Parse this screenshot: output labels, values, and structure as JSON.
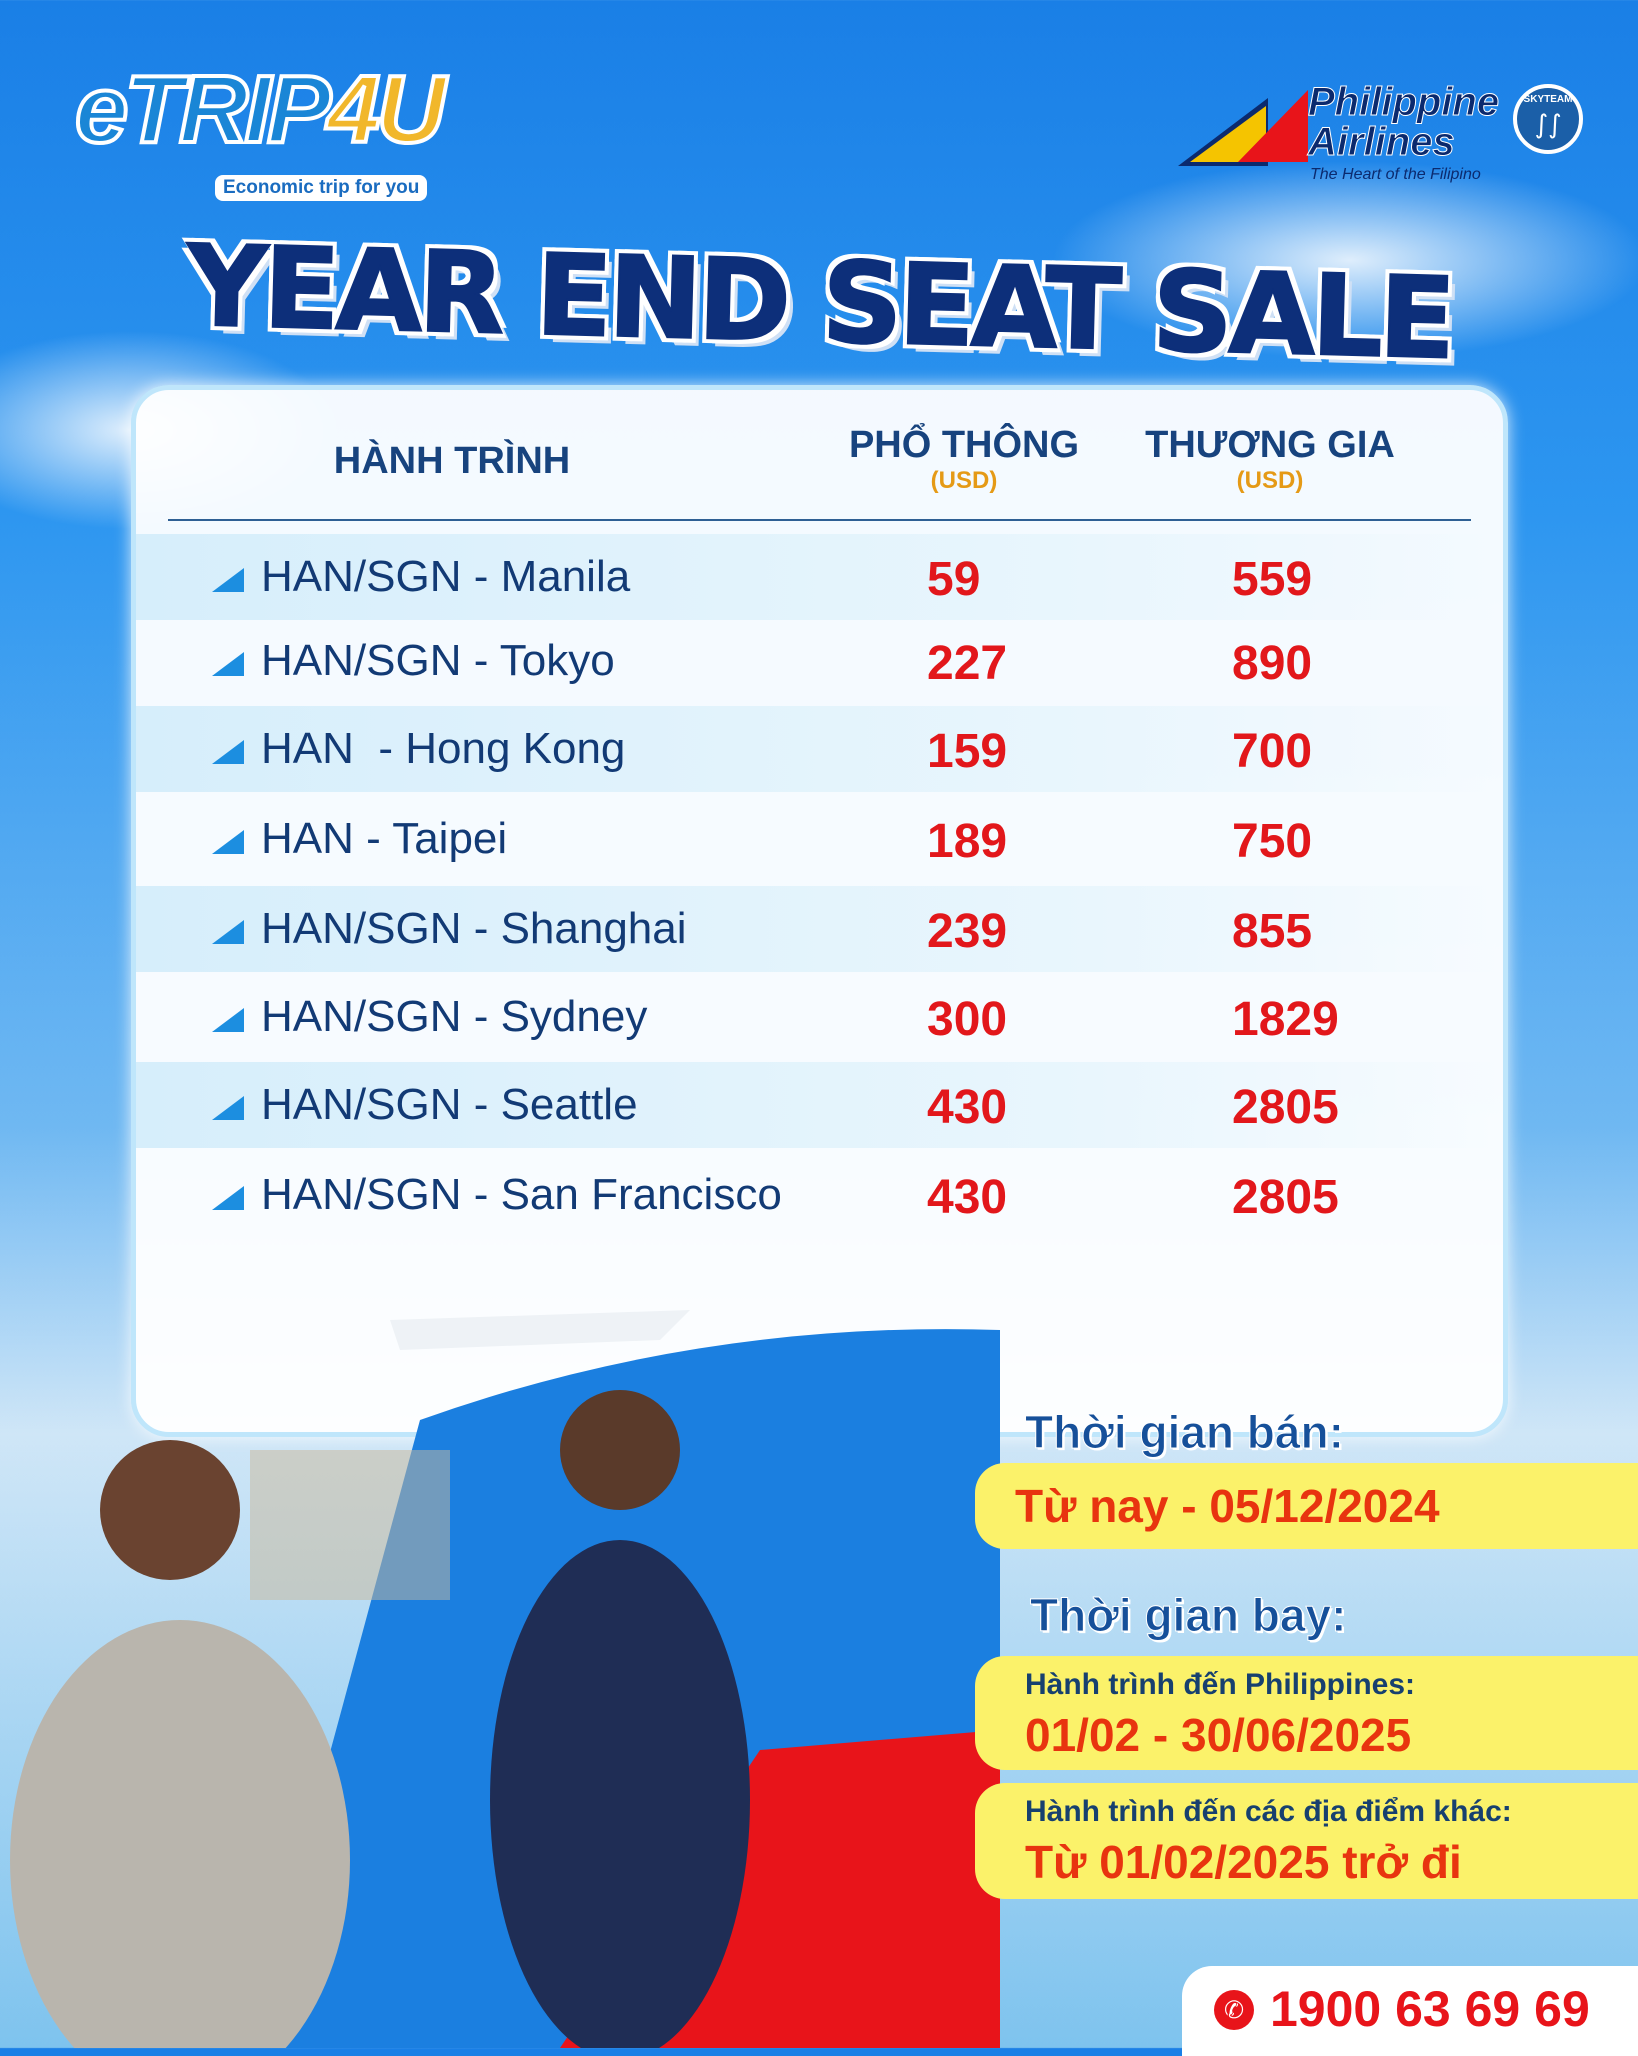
{
  "brand_left": {
    "name": "eTrip4U",
    "tagline": "Economic trip for you"
  },
  "brand_right": {
    "name_line1": "Philippine",
    "name_line2": "Airlines",
    "tagline": "The Heart of the Filipino",
    "alliance": "SKYTEAM"
  },
  "title": "YEAR END SEAT SALE",
  "table": {
    "headers": {
      "route": "HÀNH TRÌNH",
      "economy": "PHỔ THÔNG",
      "economy_unit": "(USD)",
      "business": "THƯƠNG GIA",
      "business_unit": "(USD)"
    },
    "rows": [
      {
        "route": "HAN/SGN - Manila",
        "economy": "59",
        "business": "559"
      },
      {
        "route": "HAN/SGN - Tokyo",
        "economy": "227",
        "business": "890"
      },
      {
        "route": "HAN  - Hong Kong",
        "economy": "159",
        "business": "700"
      },
      {
        "route": "HAN - Taipei",
        "economy": "189",
        "business": "750"
      },
      {
        "route": "HAN/SGN - Shanghai",
        "economy": "239",
        "business": "855"
      },
      {
        "route": "HAN/SGN - Sydney",
        "economy": "300",
        "business": "1829"
      },
      {
        "route": "HAN/SGN - Seattle",
        "economy": "430",
        "business": "2805"
      },
      {
        "route": "HAN/SGN - San Francisco",
        "economy": "430",
        "business": "2805"
      }
    ]
  },
  "sale": {
    "label": "Thời gian bán:",
    "value": "Từ nay - 05/12/2024"
  },
  "travel": {
    "label": "Thời gian bay:",
    "items": [
      {
        "label": "Hành trình đến Philippines:",
        "value": "01/02 - 30/06/2025"
      },
      {
        "label": "Hành trình đến các địa điểm khác:",
        "value": "Từ 01/02/2025 trở đi"
      }
    ]
  },
  "hotline": "1900 63 69 69",
  "colors": {
    "navy": "#0d2f7a",
    "price_red": "#e2171b",
    "band_yellow": "#fbf26a",
    "accent_orange": "#e59a16"
  }
}
